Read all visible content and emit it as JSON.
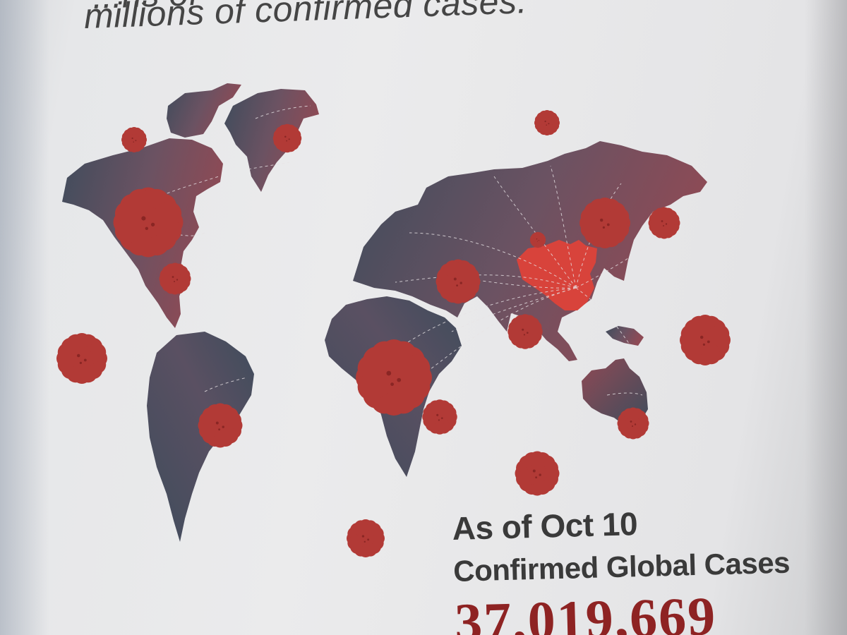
{
  "article": {
    "headline_partial": "millions of confirmed cases.",
    "headline_cut": "...ns of"
  },
  "stats": {
    "as_of": "As of Oct 10",
    "label": "Confirmed Global Cases",
    "count": "37,019,669"
  },
  "colors": {
    "land_dark": "#3f4c5c",
    "land_red": "#8e4a55",
    "highlight_region": "#d8433b",
    "virus": "#b23a36",
    "count_text": "#8e2323"
  },
  "icons": {
    "virus": "coronavirus-icon"
  }
}
